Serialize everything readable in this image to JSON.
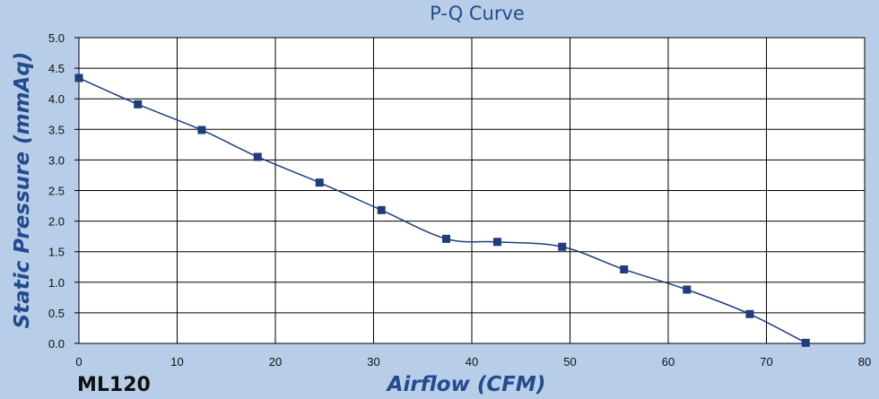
{
  "chart_data": {
    "type": "line",
    "title": "P-Q Curve",
    "xlabel": "Airflow (CFM)",
    "ylabel": "Static Pressure (mmAq)",
    "model_label": "ML120",
    "xlim": [
      0,
      80
    ],
    "ylim": [
      0,
      5
    ],
    "x_ticks": [
      "0",
      "10",
      "20",
      "30",
      "40",
      "50",
      "60",
      "70",
      "80"
    ],
    "y_ticks": [
      "0.0",
      "0.5",
      "1.0",
      "1.5",
      "2.0",
      "2.5",
      "3.0",
      "3.5",
      "4.0",
      "4.5",
      "5.0"
    ],
    "grid": true,
    "series": [
      {
        "x": [
          0,
          6,
          12.5,
          18.2,
          24.5,
          30.8,
          37.4,
          42.6,
          49.2,
          55.5,
          61.9,
          68.3,
          74.0
        ],
        "y": [
          4.34,
          3.91,
          3.49,
          3.05,
          2.63,
          2.18,
          1.71,
          1.66,
          1.58,
          1.21,
          0.88,
          0.48,
          0.01
        ]
      }
    ],
    "colors": {
      "line": "#1f3d7a",
      "marker": "#1f3d7a",
      "grid": "#000000",
      "plot_bg": "#ffffff",
      "page_bg": "#b8cde8",
      "title": "#234b8e"
    }
  }
}
